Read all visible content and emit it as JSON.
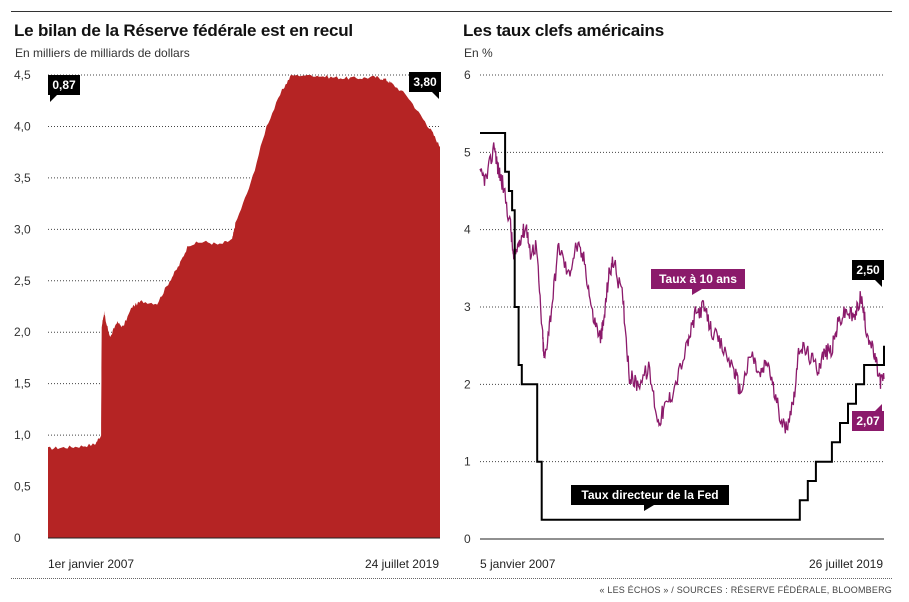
{
  "source": "« LES ÉCHOS » / SOURCES : RÉSERVE FÉDÉRALE, BLOOMBERG",
  "colors": {
    "balance": "#b52424",
    "ten_year": "#8b1a6b",
    "fed_rate": "#000000"
  },
  "chart_data": [
    {
      "type": "area",
      "title": "Le bilan de la Réserve fédérale est en recul",
      "subtitle": "En milliers de milliards de dollars",
      "xlabel": "",
      "ylabel": "",
      "ylim": [
        0,
        4.5
      ],
      "yticks": [
        "0",
        "0,5",
        "1,0",
        "1,5",
        "2,0",
        "2,5",
        "3,0",
        "3,5",
        "4,0",
        "4,5"
      ],
      "xtick_labels": [
        "1er janvier 2007",
        "24 juillet 2019"
      ],
      "xlim": [
        2007.0,
        2019.56
      ],
      "grid": true,
      "series": [
        {
          "x": [
            2007.0,
            2007.5,
            2008.0,
            2008.5,
            2008.7,
            2008.72,
            2008.8,
            2008.85,
            2009.0,
            2009.2,
            2009.4,
            2009.7,
            2010.0,
            2010.5,
            2010.9,
            2011.2,
            2011.5,
            2012.0,
            2012.5,
            2012.9,
            2013.0,
            2013.5,
            2014.0,
            2014.5,
            2014.8,
            2015.5,
            2016.0,
            2016.5,
            2017.0,
            2017.5,
            2017.8,
            2018.0,
            2018.5,
            2019.0,
            2019.3,
            2019.56
          ],
          "values": [
            0.87,
            0.88,
            0.89,
            0.91,
            1.0,
            2.05,
            2.2,
            2.1,
            1.95,
            2.1,
            2.05,
            2.25,
            2.3,
            2.28,
            2.5,
            2.65,
            2.85,
            2.88,
            2.85,
            2.9,
            3.05,
            3.45,
            4.0,
            4.35,
            4.5,
            4.5,
            4.48,
            4.47,
            4.47,
            4.48,
            4.46,
            4.42,
            4.3,
            4.08,
            3.95,
            3.8
          ]
        }
      ],
      "annotations": [
        {
          "text": "0,87"
        },
        {
          "text": "3,80"
        }
      ]
    },
    {
      "type": "line",
      "title": "Les taux clefs américains",
      "subtitle": "En %",
      "xlabel": "",
      "ylabel": "",
      "ylim": [
        0,
        6
      ],
      "yticks": [
        "0",
        "1",
        "2",
        "3",
        "4",
        "5",
        "6"
      ],
      "xtick_labels": [
        "5 janvier 2007",
        "26 juillet 2019"
      ],
      "xlim": [
        2007.0,
        2019.57
      ],
      "grid": true,
      "series": [
        {
          "name": "Taux à 10 ans",
          "x": [
            2007.0,
            2007.2,
            2007.45,
            2007.55,
            2007.7,
            2007.95,
            2008.05,
            2008.25,
            2008.45,
            2008.55,
            2008.75,
            2008.95,
            2009.0,
            2009.2,
            2009.45,
            2009.75,
            2010.0,
            2010.25,
            2010.5,
            2010.75,
            2010.85,
            2011.0,
            2011.15,
            2011.45,
            2011.65,
            2011.9,
            2012.25,
            2012.55,
            2012.75,
            2013.0,
            2013.45,
            2013.7,
            2013.95,
            2014.2,
            2014.5,
            2014.9,
            2015.1,
            2015.45,
            2015.7,
            2015.95,
            2016.2,
            2016.5,
            2016.75,
            2016.95,
            2017.2,
            2017.5,
            2017.7,
            2017.95,
            2018.15,
            2018.4,
            2018.65,
            2018.85,
            2019.0,
            2019.25,
            2019.45,
            2019.57
          ],
          "values": [
            4.7,
            4.65,
            5.1,
            4.8,
            4.6,
            4.05,
            3.6,
            3.9,
            4.05,
            3.7,
            3.8,
            2.6,
            2.3,
            2.9,
            3.8,
            3.4,
            3.8,
            3.6,
            2.9,
            2.6,
            2.8,
            3.4,
            3.6,
            3.1,
            2.1,
            2.0,
            2.2,
            1.5,
            1.7,
            1.9,
            2.5,
            2.9,
            3.0,
            2.7,
            2.5,
            2.2,
            1.9,
            2.4,
            2.1,
            2.3,
            1.8,
            1.4,
            1.8,
            2.5,
            2.4,
            2.2,
            2.4,
            2.45,
            2.8,
            2.95,
            2.85,
            3.15,
            2.75,
            2.4,
            2.05,
            2.07
          ]
        },
        {
          "name": "Taux directeur de la Fed",
          "x": [
            2007.0,
            2007.7,
            2007.78,
            2007.9,
            2008.0,
            2008.08,
            2008.2,
            2008.3,
            2008.78,
            2008.92,
            2015.95,
            2016.95,
            2017.2,
            2017.45,
            2017.95,
            2018.2,
            2018.45,
            2018.7,
            2018.95,
            2019.57
          ],
          "values": [
            5.25,
            5.25,
            4.75,
            4.5,
            4.25,
            3.0,
            2.25,
            2.0,
            1.0,
            0.25,
            0.25,
            0.5,
            0.75,
            1.0,
            1.25,
            1.5,
            1.75,
            2.0,
            2.25,
            2.5
          ],
          "step": true
        }
      ],
      "annotations": [
        {
          "text": "2,50"
        },
        {
          "text": "2,07"
        }
      ]
    }
  ]
}
